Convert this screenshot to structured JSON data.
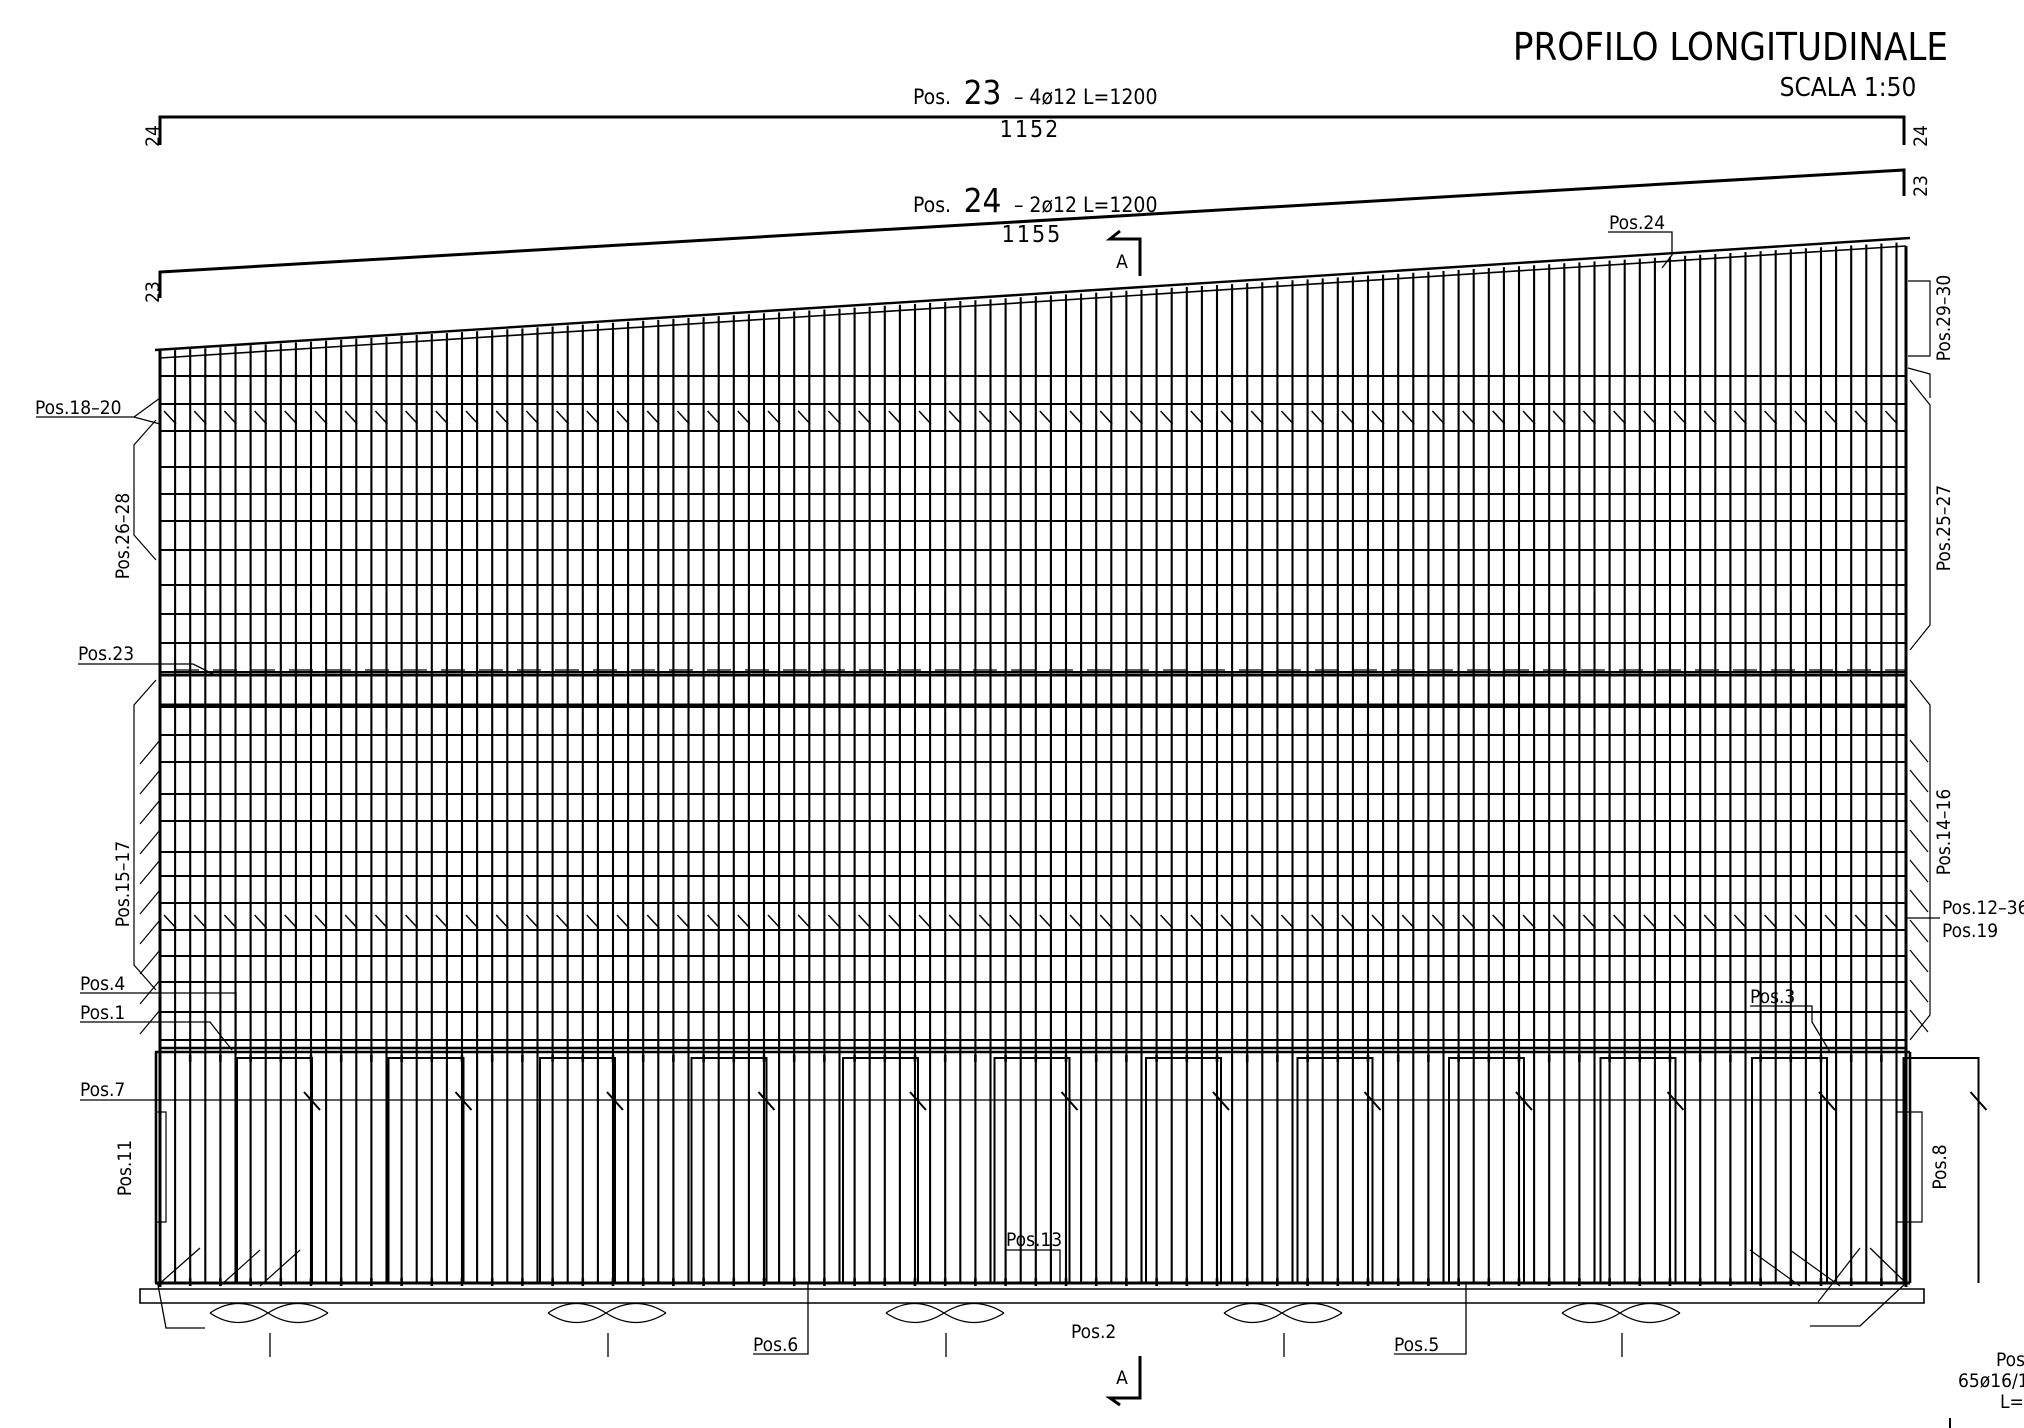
{
  "title": "PROFILO LONGITUDINALE",
  "scale": "SCALA 1:50",
  "bars": {
    "pos23": {
      "pre": "Pos.",
      "num": "23",
      "spec": "– 4ø12  L=1200",
      "length": "1152",
      "end_code": "24"
    },
    "pos24": {
      "pre": "Pos.",
      "num": "24",
      "spec": "– 2ø12  L=1200",
      "length": "1155",
      "end_code": "23"
    }
  },
  "section_mark": "A",
  "labels": {
    "pos24": "Pos.24",
    "pos29_30": "Pos.29–30",
    "pos18_20": "Pos.18–20",
    "pos26_28": "Pos.26–28",
    "pos25_27": "Pos.25–27",
    "pos23": "Pos.23",
    "pos15_17": "Pos.15–17",
    "pos14_16": "Pos.14–16",
    "pos12_36": "Pos.12–36",
    "pos19": "Pos.19",
    "pos4": "Pos.4",
    "pos1": "Pos.1",
    "pos3": "Pos.3",
    "pos7": "Pos.7",
    "pos11": "Pos.11",
    "pos8": "Pos.8",
    "pos13": "Pos.13",
    "pos6": "Pos.6",
    "pos2": "Pos.2",
    "pos5": "Pos.5"
  },
  "corner_note": [
    "Pos.",
    "65ø16/1",
    "L="
  ]
}
